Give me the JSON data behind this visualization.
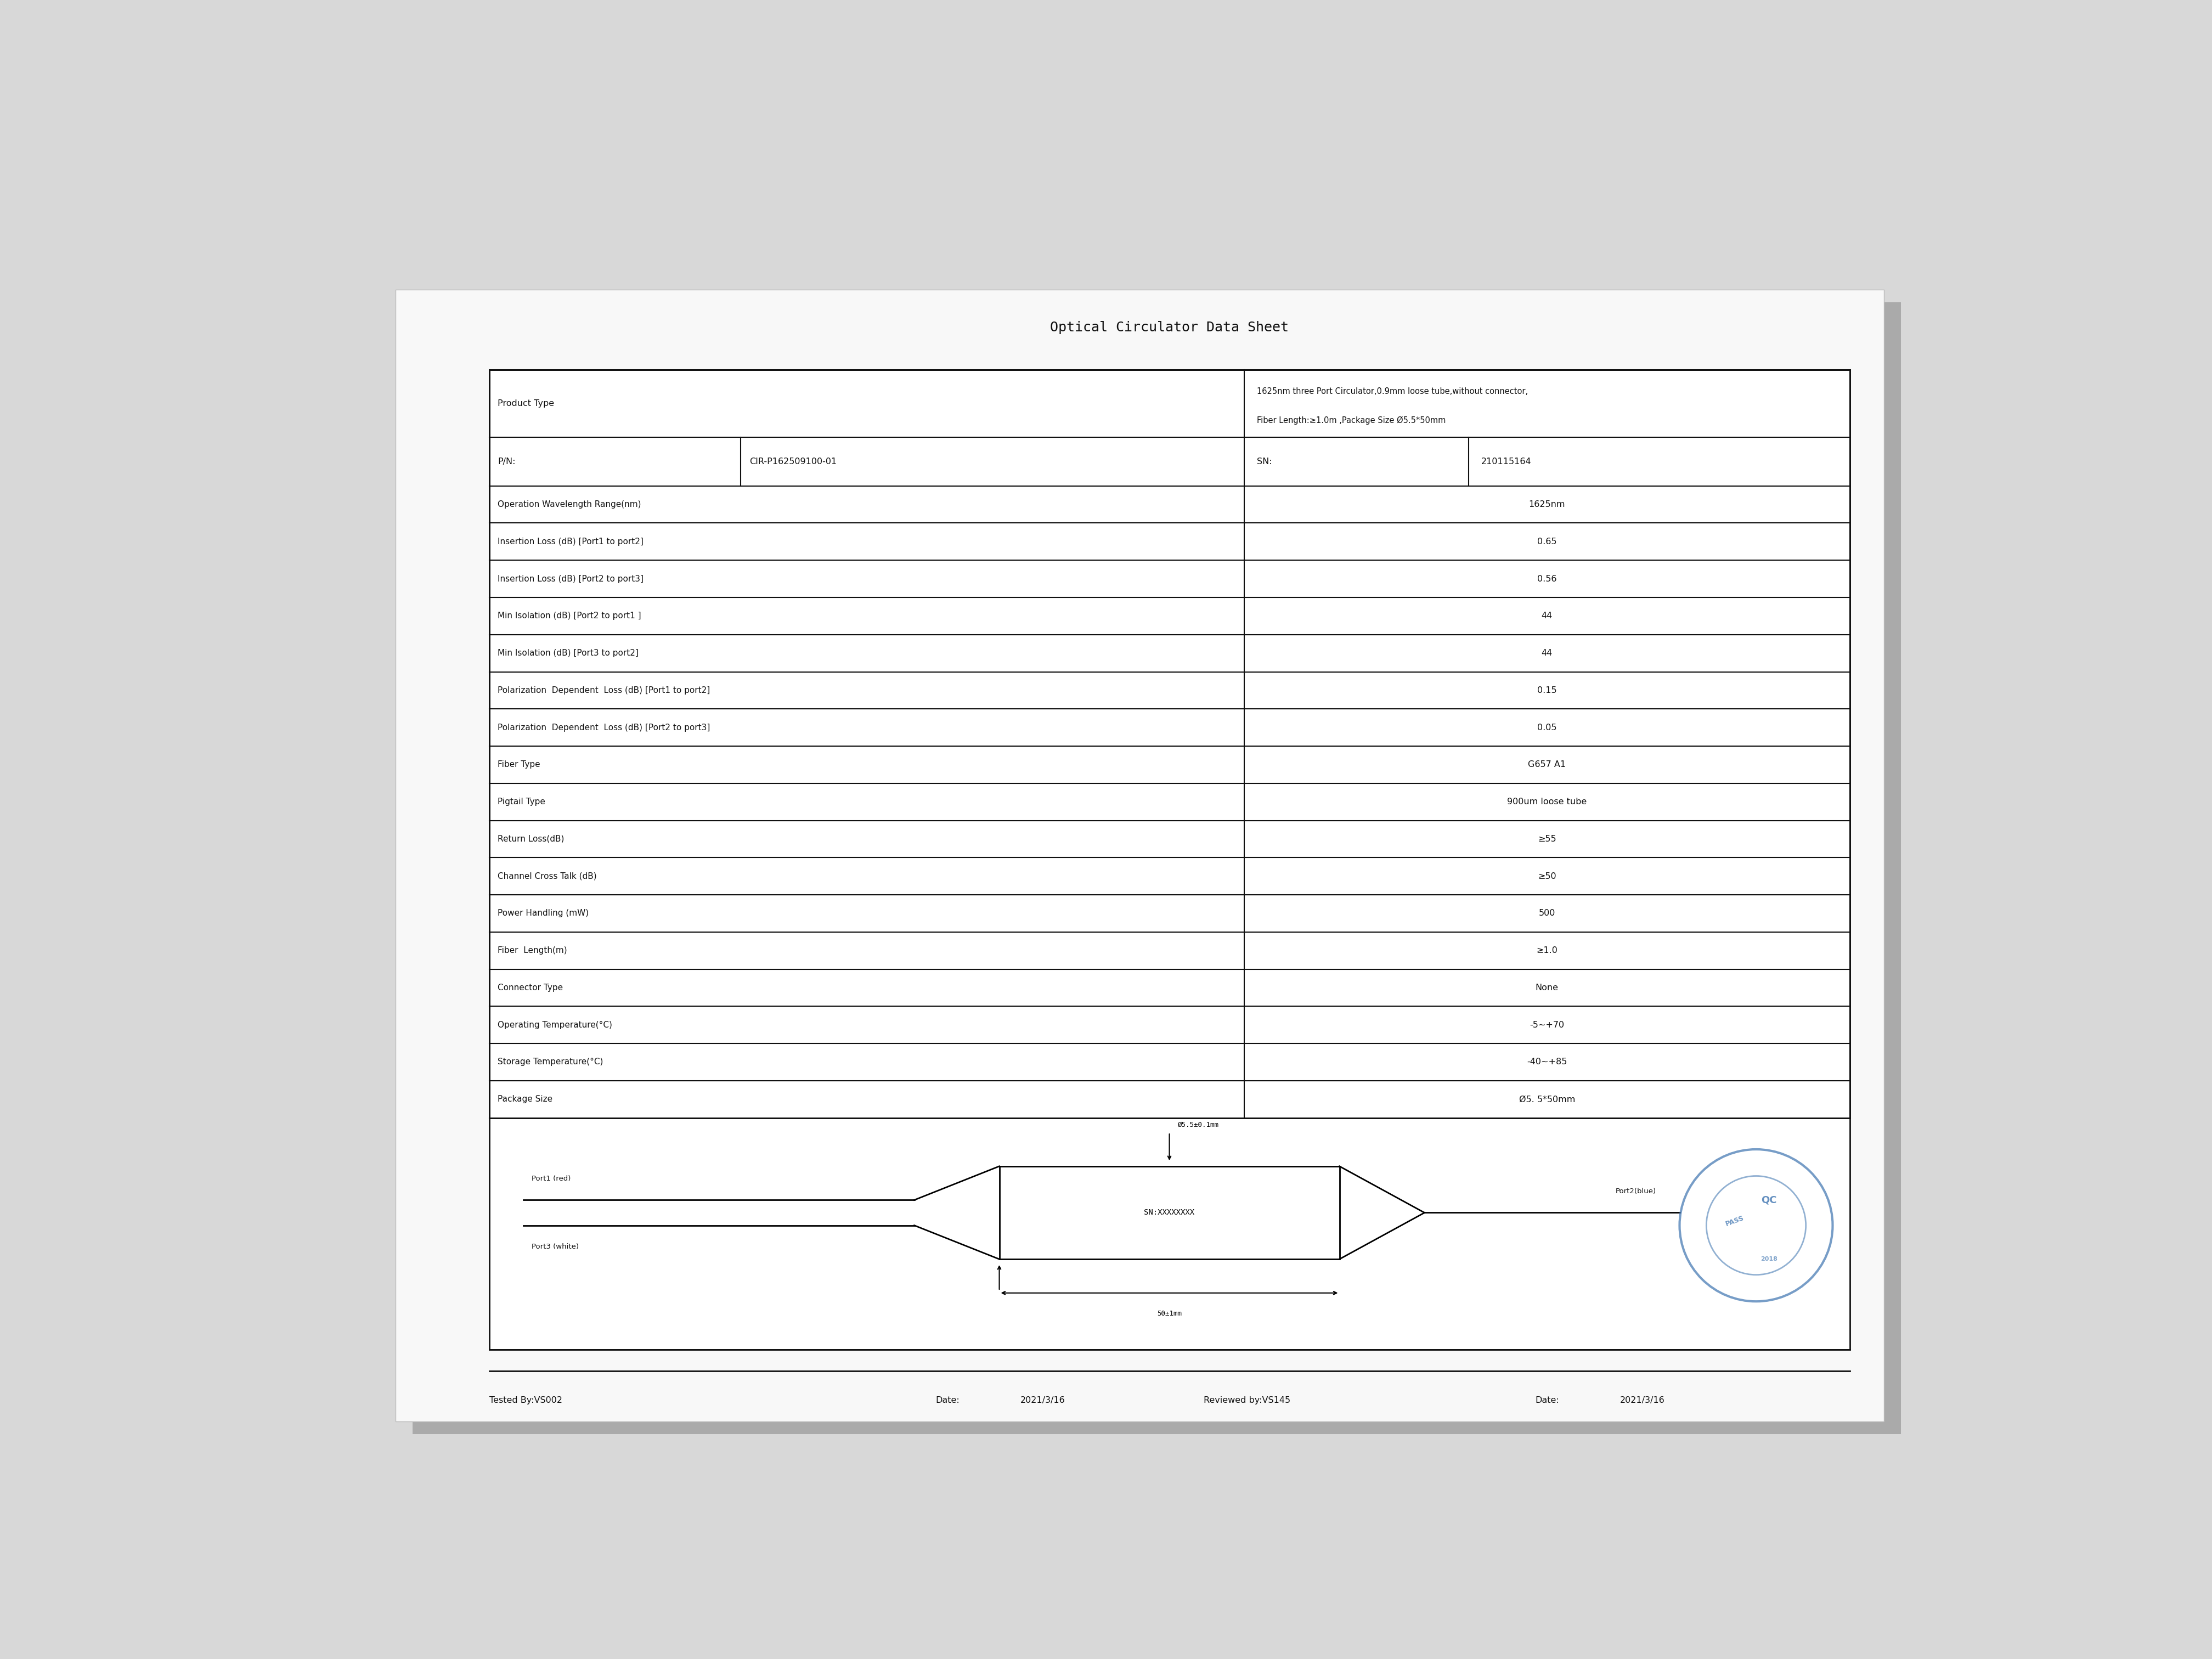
{
  "title": "Optical Circulator Data Sheet",
  "product_type_label": "Product Type",
  "product_type_value1": "1625nm three Port Circulator,0.9mm loose tube,without connector,",
  "product_type_value2": "Fiber Length:≥1.0m ,Package Size Ø5.5*50mm",
  "pn_label": "P/N:",
  "pn_value": "CIR-P162509100-01",
  "sn_label": "SN:",
  "sn_value": "210115164",
  "rows": [
    {
      "label": "Operation Wavelength Range(nm)",
      "value": "1625nm"
    },
    {
      "label": "Insertion Loss (dB) [Port1 to port2]",
      "value": "0.65"
    },
    {
      "label": "Insertion Loss (dB) [Port2 to port3]",
      "value": "0.56"
    },
    {
      "label": "Min Isolation (dB) [Port2 to port1 ]",
      "value": "44"
    },
    {
      "label": "Min Isolation (dB) [Port3 to port2]",
      "value": "44"
    },
    {
      "label": "Polarization  Dependent  Loss (dB) [Port1 to port2]",
      "value": "0.15"
    },
    {
      "label": "Polarization  Dependent  Loss (dB) [Port2 to port3]",
      "value": "0.05"
    },
    {
      "label": "Fiber Type",
      "value": "G657 A1"
    },
    {
      "label": "Pigtail Type",
      "value": "900um loose tube"
    },
    {
      "label": "Return Loss(dB)",
      "value": "≥55"
    },
    {
      "label": "Channel Cross Talk (dB)",
      "value": "≥50"
    },
    {
      "label": "Power Handling (mW)",
      "value": "500"
    },
    {
      "label": "Fiber  Length(m)",
      "value": "≥1.0"
    },
    {
      "label": "Connector Type",
      "value": "None"
    },
    {
      "label": "Operating Temperature(°C)",
      "value": "-5~+70"
    },
    {
      "label": "Storage Temperature(°C)",
      "value": "-40~+85"
    },
    {
      "label": "Package Size",
      "value": "Ø5. 5*50mm"
    }
  ],
  "diagram_port1": "Port1 (red)",
  "diagram_port2": "Port2(blue)",
  "diagram_port3": "Port3 (white)",
  "diagram_sn": "SN:XXXXXXXX",
  "diagram_dim1": "Ø5.5±0.1mm",
  "diagram_dim2": "50±1mm",
  "footer_tested": "Tested By:VS002",
  "footer_date1_label": "Date:",
  "footer_date1": "2021/3/16",
  "footer_reviewed": "Reviewed by:VS145",
  "footer_date2_label": "Date:",
  "footer_date2": "2021/3/16",
  "bg_color": "#d8d8d8",
  "paper_color": "#ffffff",
  "border_color": "#111111",
  "text_color": "#111111",
  "stamp_color": "#4a7db5"
}
